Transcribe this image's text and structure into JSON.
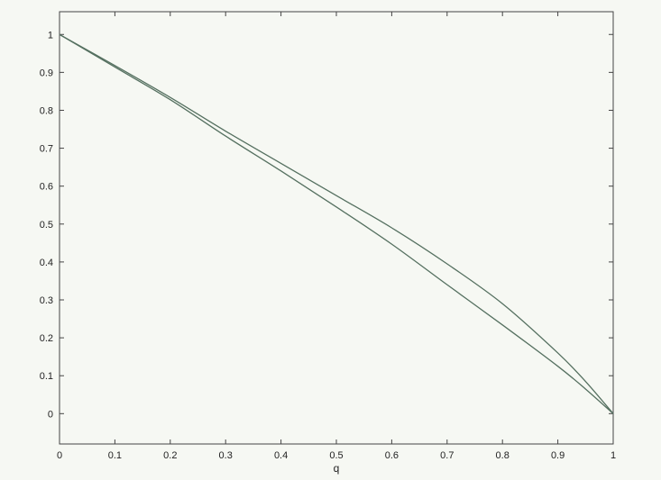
{
  "chart_data": {
    "type": "line",
    "title": "",
    "xlabel": "q",
    "ylabel": "",
    "xlim": [
      0,
      1
    ],
    "ylim": [
      -0.08,
      1.06
    ],
    "xticks": [
      0,
      0.1,
      0.2,
      0.3,
      0.4,
      0.5,
      0.6,
      0.7,
      0.8,
      0.9,
      1
    ],
    "xtick_labels": [
      "0",
      "0.1",
      "0.2",
      "0.3",
      "0.4",
      "0.5",
      "0.6",
      "0.7",
      "0.8",
      "0.9",
      "1"
    ],
    "yticks": [
      0,
      0.1,
      0.2,
      0.3,
      0.4,
      0.5,
      0.6,
      0.7,
      0.8,
      0.9,
      1
    ],
    "ytick_labels": [
      "0",
      "0.1",
      "0.2",
      "0.3",
      "0.4",
      "0.5",
      "0.6",
      "0.7",
      "0.8",
      "0.9",
      "1"
    ],
    "grid": false,
    "line_color": "#557060",
    "series": [
      {
        "x": [
          0,
          0.1,
          0.2,
          0.3,
          0.4,
          0.5,
          0.6,
          0.7,
          0.8,
          0.9,
          0.95,
          1.0
        ],
        "y": [
          1.0,
          0.918,
          0.834,
          0.745,
          0.66,
          0.575,
          0.49,
          0.395,
          0.29,
          0.16,
          0.085,
          0.0
        ]
      },
      {
        "x": [
          0,
          0.1,
          0.2,
          0.3,
          0.4,
          0.5,
          0.6,
          0.7,
          0.8,
          0.9,
          0.95,
          1.0
        ],
        "y": [
          1.0,
          0.914,
          0.828,
          0.732,
          0.64,
          0.545,
          0.447,
          0.34,
          0.234,
          0.125,
          0.065,
          0.0
        ]
      }
    ]
  }
}
